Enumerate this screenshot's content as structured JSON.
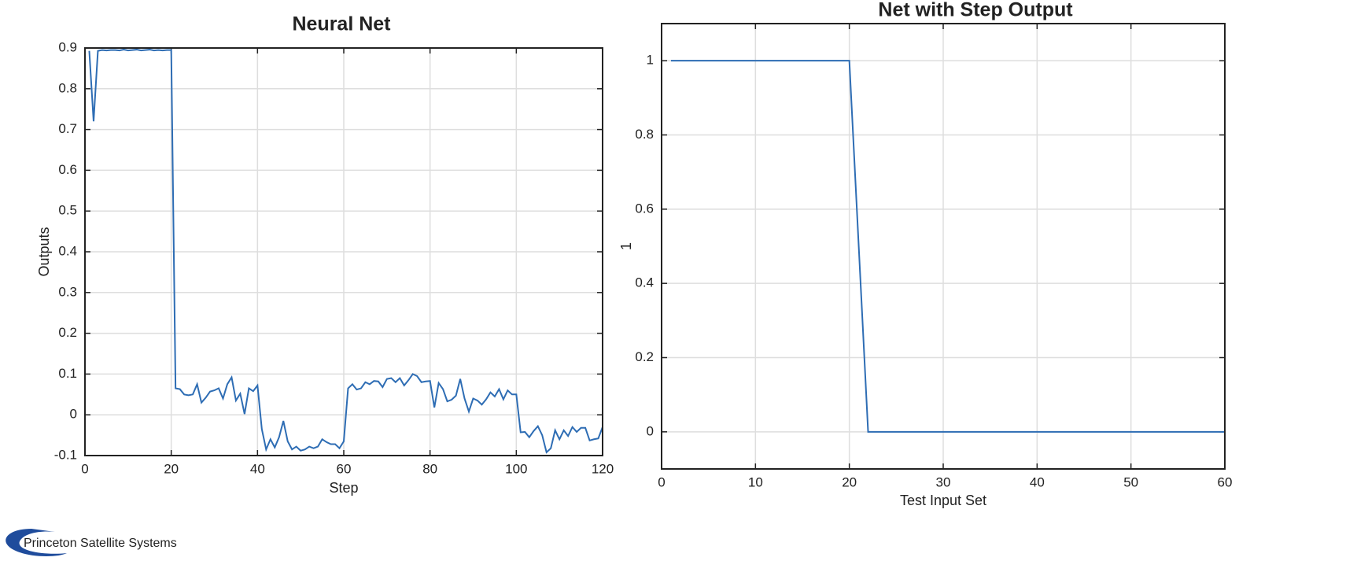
{
  "chart_data": [
    {
      "type": "line",
      "title": "Neural Net",
      "xlabel": "Step",
      "ylabel": "Outputs",
      "xlim": [
        0,
        120
      ],
      "ylim": [
        -0.1,
        0.9
      ],
      "xticks": [
        0,
        20,
        40,
        60,
        80,
        100,
        120
      ],
      "yticks": [
        -0.1,
        0,
        0.1,
        0.2,
        0.3,
        0.4,
        0.5,
        0.6,
        0.7,
        0.8,
        0.9
      ],
      "grid": true,
      "color": "#2e6db4",
      "x": [
        1,
        2,
        3,
        4,
        5,
        6,
        7,
        8,
        9,
        10,
        11,
        12,
        13,
        14,
        15,
        16,
        17,
        18,
        19,
        20,
        21,
        22,
        23,
        24,
        25,
        26,
        27,
        28,
        29,
        30,
        31,
        32,
        33,
        34,
        35,
        36,
        37,
        38,
        39,
        40,
        41,
        42,
        43,
        44,
        45,
        46,
        47,
        48,
        49,
        50,
        51,
        52,
        53,
        54,
        55,
        56,
        57,
        58,
        59,
        60,
        61,
        62,
        63,
        64,
        65,
        66,
        67,
        68,
        69,
        70,
        71,
        72,
        73,
        74,
        75,
        76,
        77,
        78,
        79,
        80,
        81,
        82,
        83,
        84,
        85,
        86,
        87,
        88,
        89,
        90,
        91,
        92,
        93,
        94,
        95,
        96,
        97,
        98,
        99,
        100,
        101,
        102,
        103,
        104,
        105,
        106,
        107,
        108,
        109,
        110,
        111,
        112,
        113,
        114,
        115,
        116,
        117,
        118,
        119,
        120
      ],
      "values": [
        0.893,
        0.72,
        0.893,
        0.895,
        0.894,
        0.895,
        0.895,
        0.894,
        0.896,
        0.894,
        0.895,
        0.896,
        0.894,
        0.895,
        0.896,
        0.894,
        0.895,
        0.894,
        0.895,
        0.895,
        0.065,
        0.063,
        0.05,
        0.048,
        0.05,
        0.075,
        0.03,
        0.042,
        0.057,
        0.06,
        0.065,
        0.04,
        0.075,
        0.092,
        0.035,
        0.052,
        0.002,
        0.065,
        0.058,
        0.072,
        -0.035,
        -0.085,
        -0.06,
        -0.08,
        -0.055,
        -0.015,
        -0.065,
        -0.085,
        -0.078,
        -0.088,
        -0.085,
        -0.078,
        -0.082,
        -0.078,
        -0.06,
        -0.067,
        -0.072,
        -0.072,
        -0.082,
        -0.065,
        0.065,
        0.075,
        0.062,
        0.065,
        0.08,
        0.075,
        0.083,
        0.082,
        0.068,
        0.088,
        0.09,
        0.08,
        0.09,
        0.072,
        0.085,
        0.1,
        0.095,
        0.08,
        0.082,
        0.083,
        0.018,
        0.078,
        0.063,
        0.033,
        0.037,
        0.047,
        0.088,
        0.04,
        0.008,
        0.04,
        0.035,
        0.025,
        0.038,
        0.055,
        0.045,
        0.063,
        0.038,
        0.06,
        0.05,
        0.05,
        -0.043,
        -0.042,
        -0.055,
        -0.04,
        -0.028,
        -0.05,
        -0.092,
        -0.082,
        -0.038,
        -0.06,
        -0.038,
        -0.052,
        -0.03,
        -0.042,
        -0.032,
        -0.032,
        -0.063,
        -0.06,
        -0.058,
        -0.03
      ]
    },
    {
      "type": "line",
      "title": "Net with Step Output",
      "xlabel": "Test Input Set",
      "ylabel": "1",
      "xlim": [
        0,
        60
      ],
      "ylim": [
        -0.1,
        1.1
      ],
      "xticks": [
        0,
        10,
        20,
        30,
        40,
        50,
        60
      ],
      "yticks": [
        0,
        0.2,
        0.4,
        0.6,
        0.8,
        1
      ],
      "grid": true,
      "color": "#2e6db4",
      "x": [
        1,
        2,
        3,
        4,
        5,
        6,
        7,
        8,
        9,
        10,
        11,
        12,
        13,
        14,
        15,
        16,
        17,
        18,
        19,
        20,
        21,
        22,
        23,
        24,
        25,
        26,
        27,
        28,
        29,
        30,
        31,
        32,
        33,
        34,
        35,
        36,
        37,
        38,
        39,
        40,
        41,
        42,
        43,
        44,
        45,
        46,
        47,
        48,
        49,
        50,
        51,
        52,
        53,
        54,
        55,
        56,
        57,
        58,
        59,
        60
      ],
      "values": [
        1,
        1,
        1,
        1,
        1,
        1,
        1,
        1,
        1,
        1,
        1,
        1,
        1,
        1,
        1,
        1,
        1,
        1,
        1,
        1,
        0.5,
        0,
        0,
        0,
        0,
        0,
        0,
        0,
        0,
        0,
        0,
        0,
        0,
        0,
        0,
        0,
        0,
        0,
        0,
        0,
        0,
        0,
        0,
        0,
        0,
        0,
        0,
        0,
        0,
        0,
        0,
        0,
        0,
        0,
        0,
        0,
        0,
        0,
        0,
        0
      ]
    }
  ],
  "logo": "Princeton Satellite Systems"
}
